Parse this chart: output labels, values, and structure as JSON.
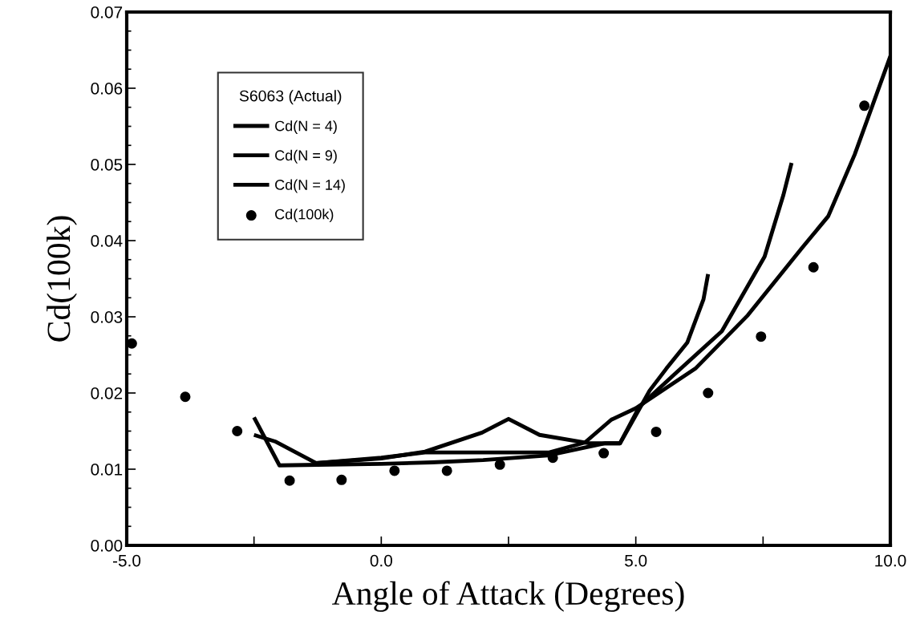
{
  "chart_data": {
    "type": "line",
    "xlabel": "Angle of Attack (Degrees)",
    "ylabel": "Cd(100k)",
    "legend_title": "S6063 (Actual)",
    "xlim": [
      -5,
      10
    ],
    "xticks": [
      {
        "value": -5,
        "label": "-5.0"
      },
      {
        "value": -2.5,
        "label": null
      },
      {
        "value": 0,
        "label": "0.0"
      },
      {
        "value": 2.5,
        "label": null
      },
      {
        "value": 5,
        "label": "5.0"
      },
      {
        "value": 7.5,
        "label": null
      },
      {
        "value": 10,
        "label": "10.0"
      }
    ],
    "ylim": [
      0,
      0.07
    ],
    "yticks": [
      {
        "value": 0,
        "label": "0.00"
      },
      {
        "value": 0.0025,
        "label": null
      },
      {
        "value": 0.005,
        "label": null
      },
      {
        "value": 0.0075,
        "label": null
      },
      {
        "value": 0.01,
        "label": "0.01"
      },
      {
        "value": 0.0125,
        "label": null
      },
      {
        "value": 0.015,
        "label": null
      },
      {
        "value": 0.0175,
        "label": null
      },
      {
        "value": 0.02,
        "label": "0.02"
      },
      {
        "value": 0.0225,
        "label": null
      },
      {
        "value": 0.025,
        "label": null
      },
      {
        "value": 0.0275,
        "label": null
      },
      {
        "value": 0.03,
        "label": "0.03"
      },
      {
        "value": 0.0325,
        "label": null
      },
      {
        "value": 0.035,
        "label": null
      },
      {
        "value": 0.0375,
        "label": null
      },
      {
        "value": 0.04,
        "label": "0.04"
      },
      {
        "value": 0.0425,
        "label": null
      },
      {
        "value": 0.045,
        "label": null
      },
      {
        "value": 0.0475,
        "label": null
      },
      {
        "value": 0.05,
        "label": "0.05"
      },
      {
        "value": 0.0525,
        "label": null
      },
      {
        "value": 0.055,
        "label": null
      },
      {
        "value": 0.0575,
        "label": null
      },
      {
        "value": 0.06,
        "label": "0.06"
      },
      {
        "value": 0.0625,
        "label": null
      },
      {
        "value": 0.065,
        "label": null
      },
      {
        "value": 0.0675,
        "label": null
      },
      {
        "value": 0.07,
        "label": "0.07"
      }
    ],
    "grid": false,
    "legend": "top left",
    "series": [
      {
        "name": "Cd(N = 4)",
        "color": "#000000",
        "x": [
          -2.5,
          -2.0,
          -1.0,
          0.0,
          1.0,
          2.0,
          3.27,
          4.4,
          4.69,
          5.02,
          5.27,
          5.6,
          6.01,
          6.33,
          6.42
        ],
        "values": [
          0.0168,
          0.0105,
          0.0106,
          0.0107,
          0.0109,
          0.0112,
          0.0118,
          0.0134,
          0.0134,
          0.0173,
          0.0203,
          0.0232,
          0.0266,
          0.0323,
          0.0356
        ]
      },
      {
        "name": "Cd(N = 9)",
        "color": "#000000",
        "x": [
          -2.5,
          -2.07,
          -1.28,
          0.0,
          0.86,
          1.98,
          2.5,
          3.11,
          4.08,
          4.69,
          5.07,
          5.75,
          6.69,
          7.53,
          7.9,
          8.06
        ],
        "values": [
          0.0145,
          0.0136,
          0.0108,
          0.0114,
          0.0123,
          0.0148,
          0.0166,
          0.0145,
          0.0134,
          0.0134,
          0.0182,
          0.0224,
          0.0281,
          0.0379,
          0.046,
          0.0502
        ]
      },
      {
        "name": "Cd(N = 14)",
        "color": "#000000",
        "x": [
          -1.28,
          0.0,
          0.86,
          2.0,
          3.3,
          4.0,
          4.52,
          5.0,
          6.17,
          7.2,
          8.26,
          8.78,
          9.3,
          10.0
        ],
        "values": [
          0.0108,
          0.0115,
          0.0122,
          0.0122,
          0.0122,
          0.0135,
          0.0165,
          0.018,
          0.0232,
          0.0302,
          0.039,
          0.0432,
          0.0513,
          0.0642
        ]
      },
      {
        "name": "Cd(100k)",
        "type": "scatter",
        "color": "#000000",
        "marker": "circle",
        "x": [
          -4.9,
          -3.85,
          -2.83,
          -1.8,
          -0.78,
          0.26,
          1.29,
          2.33,
          3.37,
          4.37,
          5.4,
          6.42,
          7.46,
          8.49,
          9.49
        ],
        "values": [
          0.0265,
          0.0195,
          0.015,
          0.0085,
          0.0086,
          0.0098,
          0.0098,
          0.0106,
          0.0115,
          0.0121,
          0.0149,
          0.02,
          0.0274,
          0.0365,
          0.0577
        ]
      }
    ]
  }
}
